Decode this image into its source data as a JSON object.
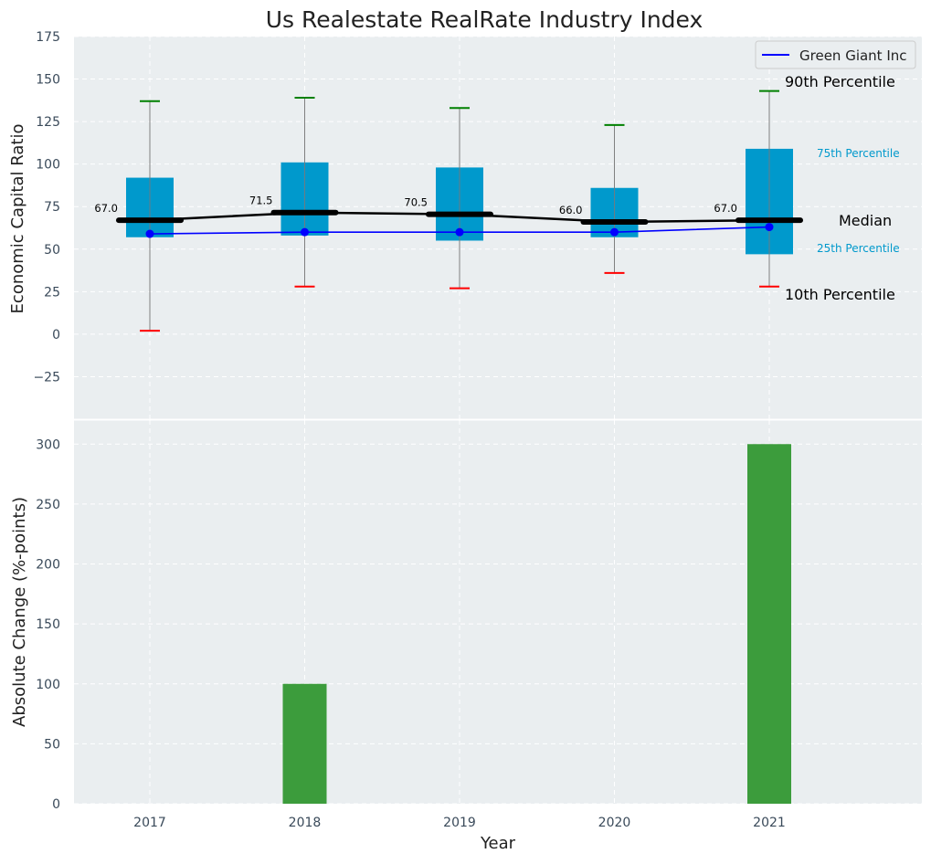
{
  "chart_data": [
    {
      "type": "box",
      "title": "Us Realestate RealRate Industry Index",
      "xlabel": "",
      "ylabel": "Economic Capital Ratio",
      "ylim": [
        -50,
        175
      ],
      "yticks": [
        -25,
        0,
        25,
        50,
        75,
        100,
        125,
        150,
        175
      ],
      "categories": [
        "2017",
        "2018",
        "2019",
        "2020",
        "2021"
      ],
      "boxes": [
        {
          "year": "2017",
          "p10": 2,
          "p25": 57,
          "median": 67.0,
          "p75": 92,
          "p90": 137
        },
        {
          "year": "2018",
          "p10": 28,
          "p25": 58,
          "median": 71.5,
          "p75": 101,
          "p90": 139
        },
        {
          "year": "2019",
          "p10": 27,
          "p25": 55,
          "median": 70.5,
          "p75": 98,
          "p90": 133
        },
        {
          "year": "2020",
          "p10": 36,
          "p25": 57,
          "median": 66.0,
          "p75": 86,
          "p90": 123
        },
        {
          "year": "2021",
          "p10": 28,
          "p25": 47,
          "median": 67.0,
          "p75": 109,
          "p90": 143
        }
      ],
      "median_labels": [
        "67.0",
        "71.5",
        "70.5",
        "66.0",
        "67.0"
      ],
      "series": [
        {
          "name": "Green Giant Inc",
          "values": [
            59,
            60,
            60,
            60,
            63
          ],
          "color": "#0000ff"
        }
      ],
      "annotations": {
        "p90": "90th Percentile",
        "p75": "75th Percentile",
        "median": "Median",
        "p25": "25th Percentile",
        "p10": "10th Percentile"
      },
      "legend_position": "top-right",
      "grid": true,
      "colors": {
        "box": "#0099cc",
        "median": "#000000",
        "p90_cap": "#008000",
        "p10_cap": "#ff0000",
        "background": "#eaeef0"
      }
    },
    {
      "type": "bar",
      "xlabel": "Year",
      "ylabel": "Absolute Change (%-points)",
      "ylim": [
        0,
        320
      ],
      "yticks": [
        0,
        50,
        100,
        150,
        200,
        250,
        300
      ],
      "categories": [
        "2017",
        "2018",
        "2019",
        "2020",
        "2021"
      ],
      "values": [
        0,
        100,
        0,
        0,
        300
      ],
      "grid": true,
      "colors": {
        "bar": "#3c9c3c",
        "background": "#eaeef0"
      }
    }
  ]
}
